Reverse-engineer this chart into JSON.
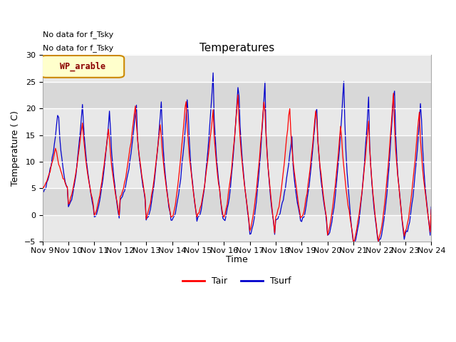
{
  "title": "Temperatures",
  "xlabel": "Time",
  "ylabel": "Temperature ( C)",
  "ylim": [
    -5,
    30
  ],
  "xlim": [
    0,
    360
  ],
  "background_color": "#ffffff",
  "plot_bg_color": "#e8e8e8",
  "grid_color": "#ffffff",
  "tair_color": "#ff0000",
  "tsurf_color": "#0000cc",
  "annotation_text1": "No data for f_Tsky",
  "annotation_text2": "No data for f_Tsky",
  "legend_label_patch": "WP_arable",
  "legend_tair": "Tair",
  "legend_tsurf": "Tsurf",
  "xtick_labels": [
    "Nov 9",
    "Nov 10",
    "Nov 11",
    "Nov 12",
    "Nov 13",
    "Nov 14",
    "Nov 15",
    "Nov 16",
    "Nov 17",
    "Nov 18",
    "Nov 19",
    "Nov 20",
    "Nov 21",
    "Nov 22",
    "Nov 23",
    "Nov 24"
  ],
  "xtick_positions": [
    0,
    24,
    48,
    72,
    96,
    120,
    144,
    168,
    192,
    216,
    240,
    264,
    288,
    312,
    336,
    360
  ],
  "band_colors": [
    "#e8e8e8",
    "#d8d8d8"
  ],
  "band_yticks": [
    -5,
    0,
    5,
    10,
    15,
    20,
    25,
    30
  ]
}
